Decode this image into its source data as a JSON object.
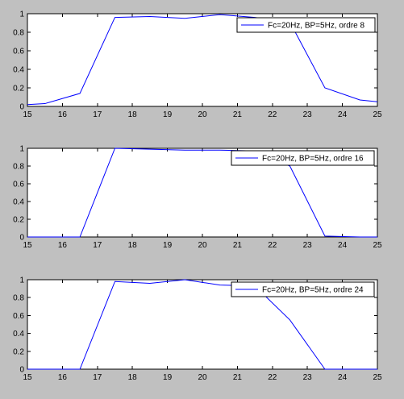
{
  "figure": {
    "background": "#c0c0c0",
    "axes_background": "#ffffff",
    "line_color": "#0000ff"
  },
  "chart_data": [
    {
      "type": "line",
      "xlim": [
        15,
        25
      ],
      "ylim": [
        0,
        1
      ],
      "xticks": [
        "15",
        "16",
        "17",
        "18",
        "19",
        "20",
        "21",
        "22",
        "23",
        "24",
        "25"
      ],
      "yticks": [
        "0",
        "0.2",
        "0.4",
        "0.6",
        "0.8",
        "1"
      ],
      "grid": false,
      "legend_position": "top-right",
      "series": [
        {
          "name": "Fc=20Hz, BP=5Hz, ordre 8",
          "x": [
            15,
            15.5,
            16.5,
            17.5,
            18.5,
            19.5,
            20.5,
            21.5,
            22.5,
            23.5,
            24.5,
            25
          ],
          "y": [
            0.02,
            0.03,
            0.14,
            0.96,
            0.97,
            0.95,
            0.99,
            0.96,
            0.91,
            0.2,
            0.07,
            0.05
          ]
        }
      ]
    },
    {
      "type": "line",
      "xlim": [
        15,
        25
      ],
      "ylim": [
        0,
        1
      ],
      "xticks": [
        "15",
        "16",
        "17",
        "18",
        "19",
        "20",
        "21",
        "22",
        "23",
        "24",
        "25"
      ],
      "yticks": [
        "0",
        "0.2",
        "0.4",
        "0.6",
        "0.8",
        "1"
      ],
      "grid": false,
      "legend_position": "top-right",
      "series": [
        {
          "name": "Fc=20Hz, BP=5Hz, ordre 16",
          "x": [
            15,
            15.5,
            16.5,
            17.5,
            18.5,
            19.5,
            20.5,
            21.5,
            22.5,
            23.5,
            24.5,
            25
          ],
          "y": [
            0,
            0,
            0,
            1.0,
            0.99,
            0.98,
            0.98,
            0.97,
            0.8,
            0.01,
            0,
            0
          ]
        }
      ]
    },
    {
      "type": "line",
      "xlim": [
        15,
        25
      ],
      "ylim": [
        0,
        1
      ],
      "xticks": [
        "15",
        "16",
        "17",
        "18",
        "19",
        "20",
        "21",
        "22",
        "23",
        "24",
        "25"
      ],
      "yticks": [
        "0",
        "0.2",
        "0.4",
        "0.6",
        "0.8",
        "1"
      ],
      "grid": false,
      "legend_position": "top-right",
      "series": [
        {
          "name": "Fc=20Hz, BP=5Hz, ordre 24",
          "x": [
            15,
            15.5,
            16.5,
            17.5,
            18.5,
            19.5,
            20.5,
            21.5,
            22.5,
            23.5,
            24.5,
            25
          ],
          "y": [
            0,
            0,
            0,
            0.98,
            0.96,
            1.0,
            0.94,
            0.93,
            0.55,
            0,
            0,
            0
          ]
        }
      ]
    }
  ]
}
